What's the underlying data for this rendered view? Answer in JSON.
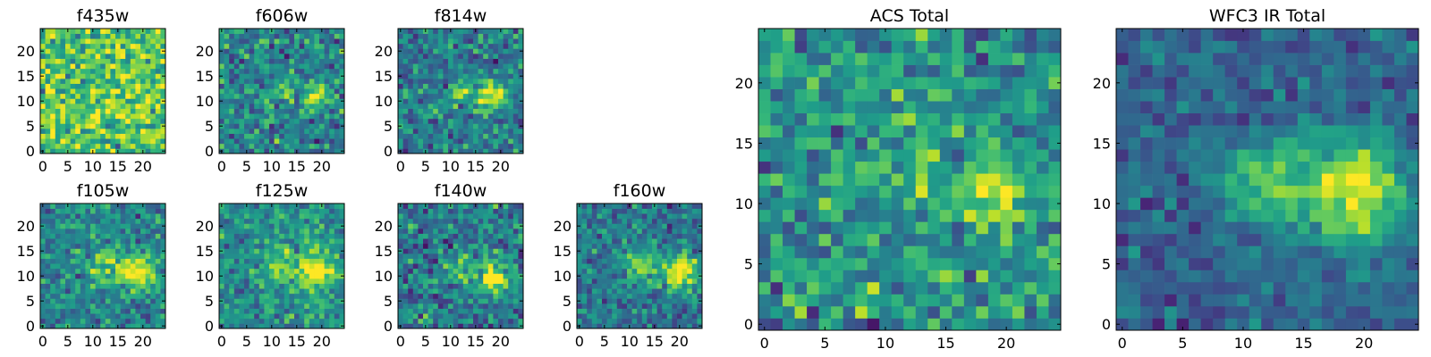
{
  "figure_title": "",
  "chart_data": [
    {
      "type": "heatmap",
      "title": "f435w",
      "colormap": "viridis",
      "grid_size": 25,
      "xlim": [
        -0.5,
        24.5
      ],
      "ylim": [
        -0.5,
        24.5
      ],
      "xticks": [
        0,
        5,
        10,
        15,
        20
      ],
      "yticks": [
        0,
        5,
        10,
        15,
        20
      ],
      "xtick_labels": [
        "0",
        "5",
        "10",
        "15",
        "20"
      ],
      "ytick_labels": [
        "0",
        "5",
        "10",
        "15",
        "20"
      ],
      "sources": [
        {
          "x": 18,
          "y": 11,
          "amp": 0.15,
          "sigma": 3
        }
      ],
      "noise_level": 0.35,
      "baseline": 0.72,
      "seed": 11
    },
    {
      "type": "heatmap",
      "title": "f606w",
      "colormap": "viridis",
      "grid_size": 25,
      "xlim": [
        -0.5,
        24.5
      ],
      "ylim": [
        -0.5,
        24.5
      ],
      "xticks": [
        0,
        5,
        10,
        15,
        20
      ],
      "yticks": [
        0,
        5,
        10,
        15,
        20
      ],
      "xtick_labels": [
        "0",
        "5",
        "10",
        "15",
        "20"
      ],
      "ytick_labels": [
        "0",
        "5",
        "10",
        "15",
        "20"
      ],
      "sources": [
        {
          "x": 19,
          "y": 11,
          "amp": 0.55,
          "sigma": 1.6
        },
        {
          "x": 12,
          "y": 12,
          "amp": 0.2,
          "sigma": 1.8
        }
      ],
      "noise_level": 0.3,
      "baseline": 0.45,
      "seed": 23
    },
    {
      "type": "heatmap",
      "title": "f814w",
      "colormap": "viridis",
      "grid_size": 25,
      "xlim": [
        -0.5,
        24.5
      ],
      "ylim": [
        -0.5,
        24.5
      ],
      "xticks": [
        0,
        5,
        10,
        15,
        20
      ],
      "yticks": [
        0,
        5,
        10,
        15,
        20
      ],
      "xtick_labels": [
        "0",
        "5",
        "10",
        "15",
        "20"
      ],
      "ytick_labels": [
        "0",
        "5",
        "10",
        "15",
        "20"
      ],
      "sources": [
        {
          "x": 18,
          "y": 11,
          "amp": 0.6,
          "sigma": 2
        },
        {
          "x": 12,
          "y": 12,
          "amp": 0.3,
          "sigma": 1.6
        }
      ],
      "noise_level": 0.28,
      "baseline": 0.42,
      "seed": 37
    },
    {
      "type": "heatmap",
      "title": "f105w",
      "colormap": "viridis",
      "grid_size": 25,
      "xlim": [
        -0.5,
        24.5
      ],
      "ylim": [
        -0.5,
        24.5
      ],
      "xticks": [
        0,
        5,
        10,
        15,
        20
      ],
      "yticks": [
        0,
        5,
        10,
        15,
        20
      ],
      "xtick_labels": [
        "0",
        "5",
        "10",
        "15",
        "20"
      ],
      "ytick_labels": [
        "0",
        "5",
        "10",
        "15",
        "20"
      ],
      "sources": [
        {
          "x": 19,
          "y": 11,
          "amp": 0.6,
          "sigma": 2.5
        },
        {
          "x": 12,
          "y": 12,
          "amp": 0.35,
          "sigma": 2.2
        }
      ],
      "noise_level": 0.25,
      "baseline": 0.45,
      "seed": 41
    },
    {
      "type": "heatmap",
      "title": "f125w",
      "colormap": "viridis",
      "grid_size": 25,
      "xlim": [
        -0.5,
        24.5
      ],
      "ylim": [
        -0.5,
        24.5
      ],
      "xticks": [
        0,
        5,
        10,
        15,
        20
      ],
      "yticks": [
        0,
        5,
        10,
        15,
        20
      ],
      "xtick_labels": [
        "0",
        "5",
        "10",
        "15",
        "20"
      ],
      "ytick_labels": [
        "0",
        "5",
        "10",
        "15",
        "20"
      ],
      "sources": [
        {
          "x": 19,
          "y": 11,
          "amp": 0.55,
          "sigma": 2.5
        },
        {
          "x": 12,
          "y": 12,
          "amp": 0.35,
          "sigma": 2.2
        }
      ],
      "noise_level": 0.25,
      "baseline": 0.5,
      "seed": 53
    },
    {
      "type": "heatmap",
      "title": "f140w",
      "colormap": "viridis",
      "grid_size": 25,
      "xlim": [
        -0.5,
        24.5
      ],
      "ylim": [
        -0.5,
        24.5
      ],
      "xticks": [
        0,
        5,
        10,
        15,
        20
      ],
      "yticks": [
        0,
        5,
        10,
        15,
        20
      ],
      "xtick_labels": [
        "0",
        "5",
        "10",
        "15",
        "20"
      ],
      "ytick_labels": [
        "0",
        "5",
        "10",
        "15",
        "20"
      ],
      "sources": [
        {
          "x": 19,
          "y": 10,
          "amp": 0.6,
          "sigma": 2.2
        },
        {
          "x": 12,
          "y": 12,
          "amp": 0.35,
          "sigma": 2
        }
      ],
      "noise_level": 0.3,
      "baseline": 0.42,
      "seed": 67
    },
    {
      "type": "heatmap",
      "title": "f160w",
      "colormap": "viridis",
      "grid_size": 25,
      "xlim": [
        -0.5,
        24.5
      ],
      "ylim": [
        -0.5,
        24.5
      ],
      "xticks": [
        0,
        5,
        10,
        15,
        20
      ],
      "yticks": [
        0,
        5,
        10,
        15,
        20
      ],
      "xtick_labels": [
        "0",
        "5",
        "10",
        "15",
        "20"
      ],
      "ytick_labels": [
        "0",
        "5",
        "10",
        "15",
        "20"
      ],
      "sources": [
        {
          "x": 20,
          "y": 11,
          "amp": 0.6,
          "sigma": 2.5
        },
        {
          "x": 12,
          "y": 12,
          "amp": 0.4,
          "sigma": 2.2
        }
      ],
      "noise_level": 0.25,
      "baseline": 0.4,
      "seed": 79
    },
    {
      "type": "heatmap",
      "title": "ACS Total",
      "colormap": "viridis",
      "grid_size": 25,
      "xlim": [
        -0.5,
        24.5
      ],
      "ylim": [
        -0.5,
        24.5
      ],
      "xticks": [
        0,
        5,
        10,
        15,
        20
      ],
      "yticks": [
        0,
        5,
        10,
        15,
        20
      ],
      "xtick_labels": [
        "0",
        "5",
        "10",
        "15",
        "20"
      ],
      "ytick_labels": [
        "0",
        "5",
        "10",
        "15",
        "20"
      ],
      "sources": [
        {
          "x": 19,
          "y": 11,
          "amp": 0.55,
          "sigma": 1.8
        },
        {
          "x": 12,
          "y": 12.5,
          "amp": 0.3,
          "sigma": 1.3
        }
      ],
      "noise_level": 0.3,
      "baseline": 0.5,
      "seed": 97
    },
    {
      "type": "heatmap",
      "title": "WFC3 IR Total",
      "colormap": "viridis",
      "grid_size": 25,
      "xlim": [
        -0.5,
        24.5
      ],
      "ylim": [
        -0.5,
        24.5
      ],
      "xticks": [
        0,
        5,
        10,
        15,
        20
      ],
      "yticks": [
        0,
        5,
        10,
        15,
        20
      ],
      "xtick_labels": [
        "0",
        "5",
        "10",
        "15",
        "20"
      ],
      "ytick_labels": [
        "0",
        "5",
        "10",
        "15",
        "20"
      ],
      "sources": [
        {
          "x": 19,
          "y": 11,
          "amp": 0.65,
          "sigma": 3
        },
        {
          "x": 12,
          "y": 12,
          "amp": 0.45,
          "sigma": 2.3
        }
      ],
      "noise_level": 0.18,
      "baseline": 0.32,
      "seed": 113
    }
  ]
}
